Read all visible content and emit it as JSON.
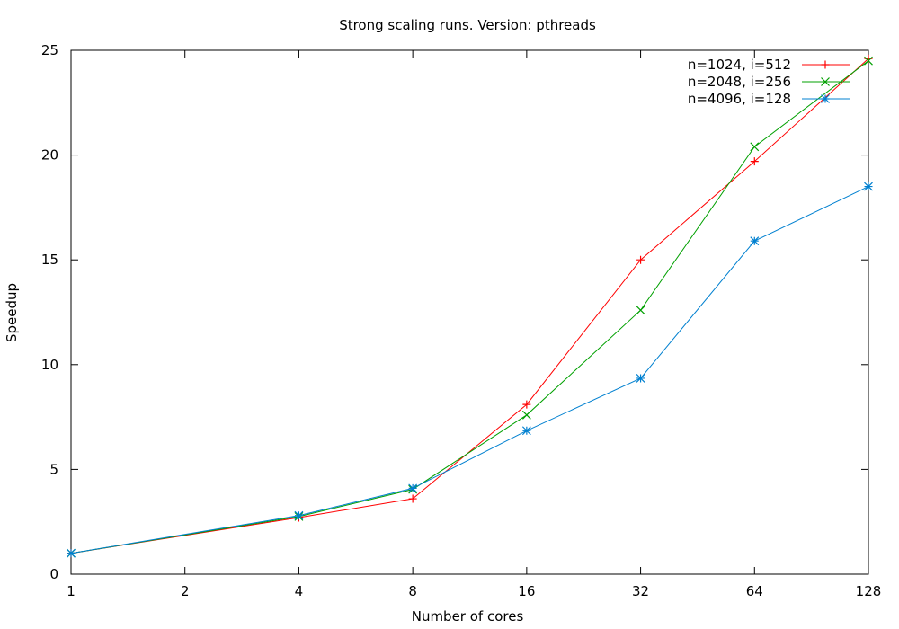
{
  "chart_data": {
    "type": "line",
    "title": "Strong scaling runs. Version: pthreads",
    "xlabel": "Number of cores",
    "ylabel": "Speedup",
    "x_scale": "log2",
    "xlim": [
      1,
      128
    ],
    "ylim": [
      0,
      25
    ],
    "x_ticks": [
      "1",
      "2",
      "4",
      "8",
      "16",
      "32",
      "64",
      "128"
    ],
    "y_ticks": [
      "0",
      "5",
      "10",
      "15",
      "20",
      "25"
    ],
    "grid": false,
    "legend_position": "top-right",
    "x": [
      1,
      4,
      8,
      16,
      32,
      64,
      128
    ],
    "series": [
      {
        "name": "n=1024, i=512",
        "color": "#ff0000",
        "marker": "plus",
        "values": [
          1.0,
          2.7,
          3.6,
          8.1,
          15.0,
          19.7,
          24.6
        ]
      },
      {
        "name": "n=2048, i=256",
        "color": "#00a000",
        "marker": "cross",
        "values": [
          1.0,
          2.75,
          4.05,
          7.6,
          12.6,
          20.4,
          24.5
        ]
      },
      {
        "name": "n=4096, i=128",
        "color": "#0080d0",
        "marker": "star",
        "values": [
          1.0,
          2.8,
          4.1,
          6.85,
          9.35,
          15.9,
          18.5
        ]
      }
    ]
  }
}
